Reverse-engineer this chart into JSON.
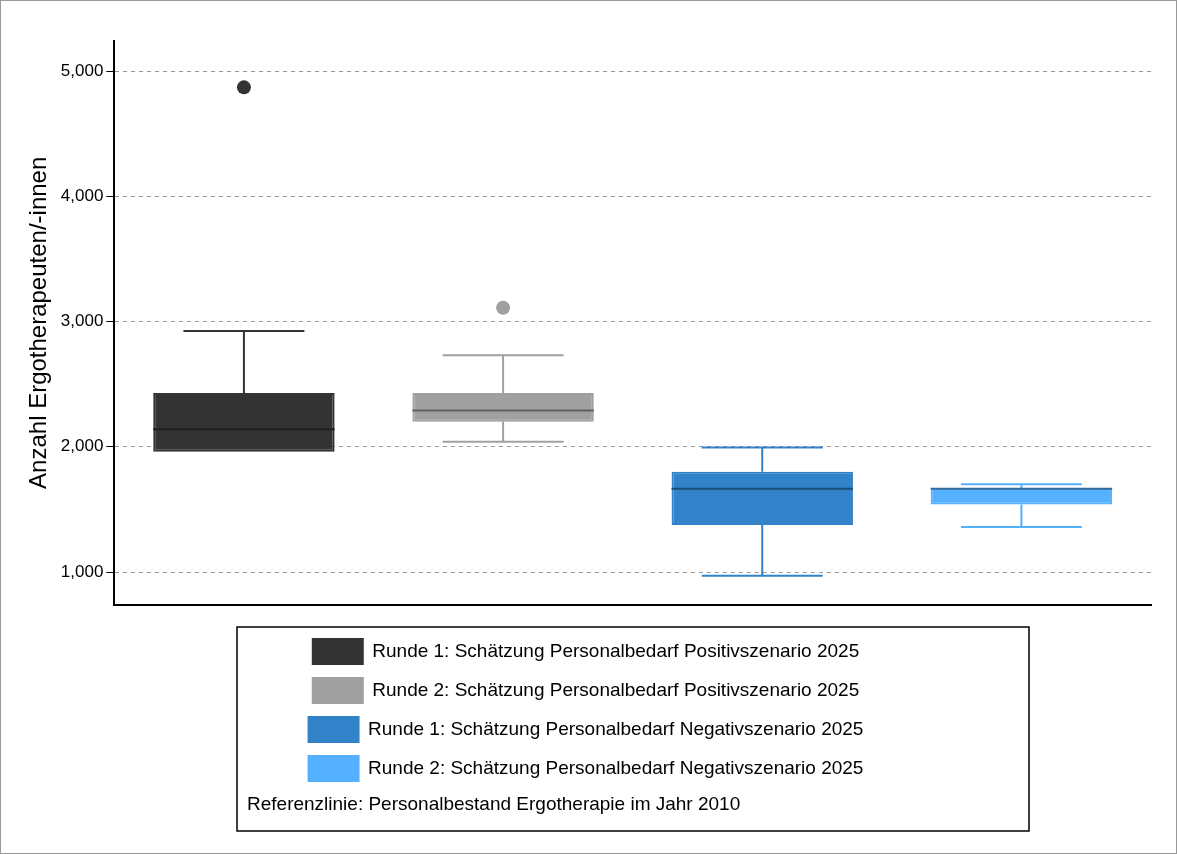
{
  "chart_data": {
    "type": "box",
    "ylabel": "Anzahl Ergotherapeuten/-innen",
    "categories": [
      null,
      null,
      null,
      null
    ],
    "ylim": [
      740,
      5240
    ],
    "yticks": [
      {
        "value": 1000,
        "label": "1,000"
      },
      {
        "value": 2000,
        "label": "2,000"
      },
      {
        "value": 3000,
        "label": "3,000"
      },
      {
        "value": 4000,
        "label": "4,000"
      },
      {
        "value": 5000,
        "label": "5,000"
      }
    ],
    "grid": "y",
    "legend": "bottom",
    "series": [
      {
        "name": "Runde 1: Schätzung Personalbedarf Positivszenario 2025",
        "color": "#333333",
        "boxes": [
          {
            "low": 1960,
            "q1": 1960,
            "median": 2140,
            "q3": 2430,
            "high": 2925,
            "outliers": [
              4870
            ]
          },
          null,
          null,
          null
        ]
      },
      {
        "name": "Runde 2: Schätzung Personalbedarf Positivszenario 2025",
        "color": "#a0a0a0",
        "boxes": [
          null,
          {
            "low": 2040,
            "q1": 2200,
            "median": 2290,
            "q3": 2430,
            "high": 2730,
            "outliers": [
              3110
            ]
          },
          null,
          null
        ]
      },
      {
        "name": "Runde 1: Schätzung Personalbedarf Negativszenario 2025",
        "color": "#3182c8",
        "boxes": [
          null,
          null,
          {
            "low": 970,
            "q1": 1375,
            "median": 1665,
            "q3": 1800,
            "high": 1995
          },
          null
        ]
      },
      {
        "name": "Runde 2: Schätzung Personalbedarf Negativszenario 2025",
        "color": "#55b0ff",
        "boxes": [
          null,
          null,
          null,
          {
            "low": 1360,
            "q1": 1540,
            "median": 1665,
            "q3": 1670,
            "high": 1700
          }
        ]
      }
    ],
    "annotations": [
      "Referenzlinie: Personalbestand Ergotherapie im Jahr 2010"
    ]
  }
}
